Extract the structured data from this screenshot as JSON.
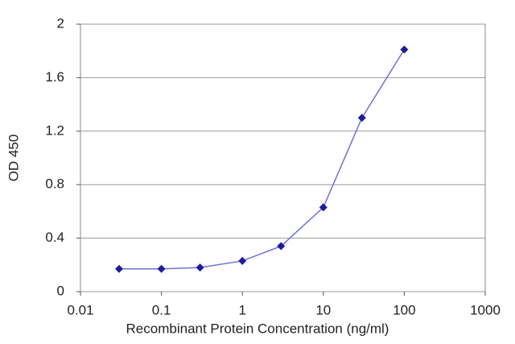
{
  "chart_data": {
    "type": "line",
    "xlabel": "Recombinant Protein Concentration (ng/ml)",
    "ylabel": "OD 450",
    "x": [
      0.03,
      0.1,
      0.3,
      1,
      3,
      10,
      30,
      100
    ],
    "values": [
      0.17,
      0.17,
      0.18,
      0.23,
      0.34,
      0.63,
      1.3,
      1.81
    ],
    "color": "#7070d8",
    "marker_color": "#1c1c9c",
    "xlog": true,
    "xlim": [
      0.01,
      1000
    ],
    "xticks": [
      0.01,
      0.1,
      1,
      10,
      100,
      1000
    ],
    "ylim": [
      0,
      2
    ],
    "yticks": [
      0,
      0.4,
      0.8,
      1.2,
      1.6,
      2
    ],
    "grid": true
  }
}
